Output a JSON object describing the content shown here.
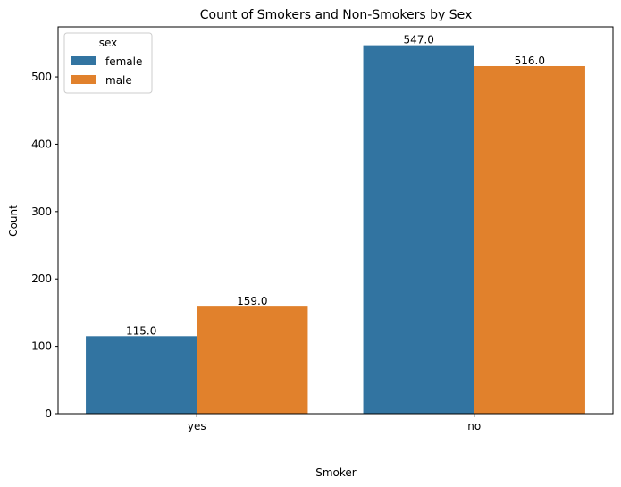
{
  "chart_data": {
    "type": "bar",
    "title": "Count of Smokers and Non-Smokers by Sex",
    "xlabel": "Smoker",
    "ylabel": "Count",
    "categories": [
      "yes",
      "no"
    ],
    "series": [
      {
        "name": "female",
        "values": [
          115.0,
          547.0
        ],
        "labels": [
          "115.0",
          "547.0"
        ],
        "color": "#3274a1"
      },
      {
        "name": "male",
        "values": [
          159.0,
          516.0
        ],
        "labels": [
          "159.0",
          "516.0"
        ],
        "color": "#e1812c"
      }
    ],
    "ylim": [
      0,
      574.35
    ],
    "yticks": [
      0,
      100,
      200,
      300,
      400,
      500
    ],
    "grid": false,
    "legend": {
      "title": "sex",
      "placement": "top-left"
    }
  }
}
